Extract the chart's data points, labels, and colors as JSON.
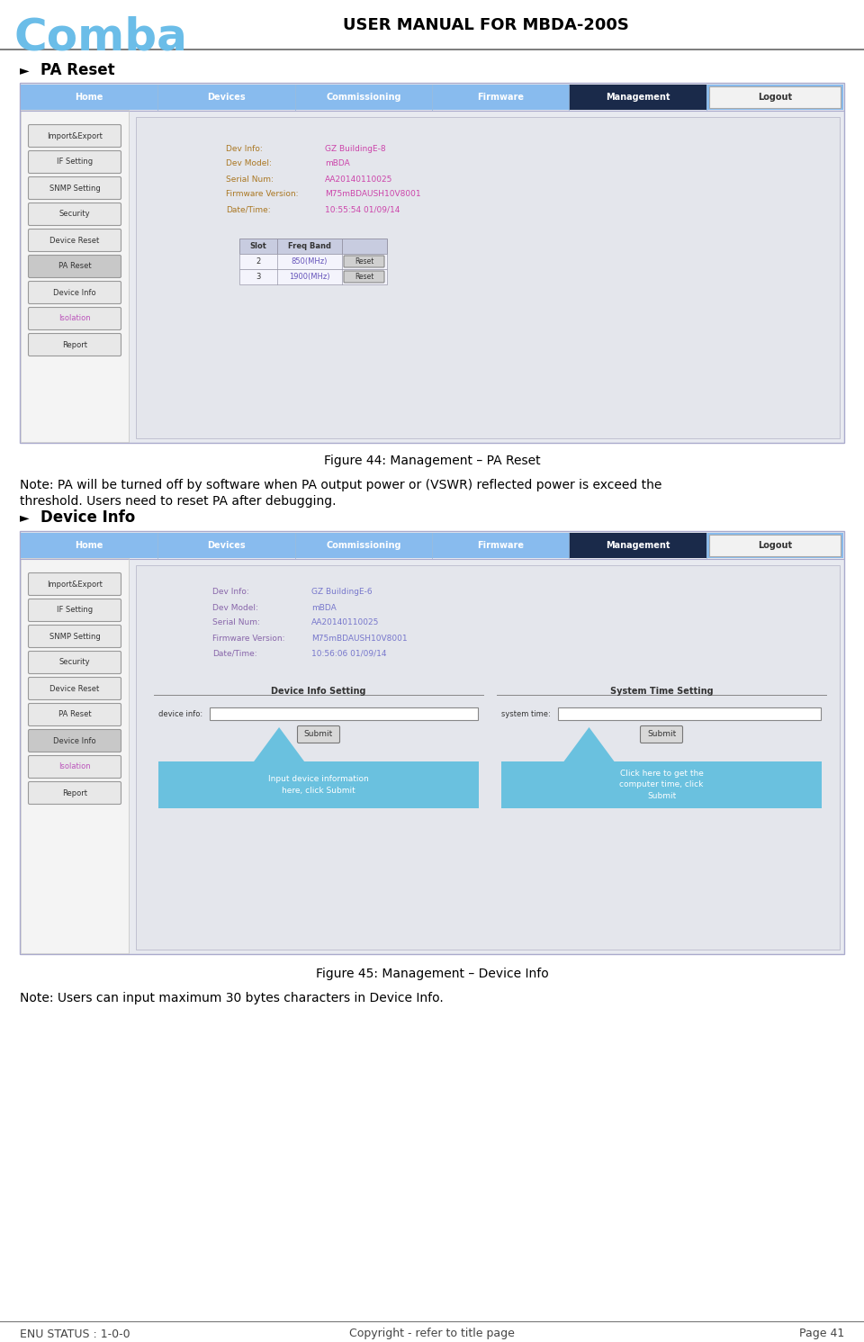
{
  "title": "USER MANUAL FOR MBDA-200S",
  "comba_text": "Comba",
  "comba_color": "#6bbde8",
  "bg_color": "#ffffff",
  "footer_left": "ENU STATUS : 1-0-0",
  "footer_center": "Copyright - refer to title page",
  "footer_right": "Page 41",
  "section1_bullet": "►",
  "section1_title": "PA Reset",
  "section1_fig_caption": "Figure 44: Management – PA Reset",
  "section1_note_line1": "Note: PA will be turned off by software when PA output power or (VSWR) reflected power is exceed the",
  "section1_note_line2": "threshold. Users need to reset PA after debugging.",
  "section2_bullet": "►",
  "section2_title": "Device Info",
  "section2_fig_caption": "Figure 45: Management – Device Info",
  "section2_note": "Note: Users can input maximum 30 bytes characters in Device Info.",
  "nav_items": [
    "Home",
    "Devices",
    "Commissioning",
    "Firmware",
    "Management",
    "Logout"
  ],
  "nav_active": "Management",
  "nav_bg": "#88bbee",
  "nav_active_bg": "#1a2a4a",
  "nav_text_color": "#ffffff",
  "sidebar_buttons": [
    "Import&Export",
    "IF Setting",
    "SNMP Setting",
    "Security",
    "Device Reset",
    "PA Reset",
    "Device Info",
    "Isolation",
    "Report"
  ],
  "sidebar_active1": "PA Reset",
  "sidebar_active2": "Device Info",
  "sidebar_isolation_color": "#bb55bb",
  "fig1_dev_info": "GZ BuildingE-8",
  "fig1_dev_model": "mBDA",
  "fig1_serial": "AA20140110025",
  "fig1_firmware": "M75mBDAUSH10V8001",
  "fig1_datetime": "10:55:54 01/09/14",
  "fig1_slot_data": [
    [
      2,
      "850(MHz)"
    ],
    [
      3,
      "1900(MHz)"
    ]
  ],
  "fig2_dev_info": "GZ BuildingE-6",
  "fig2_dev_model": "mBDA",
  "fig2_serial": "AA20140110025",
  "fig2_firmware": "M75mBDAUSH10V8001",
  "fig2_datetime": "10:56:06 01/09/14",
  "label_color": "#aa7722",
  "value_color": "#cc44aa",
  "label_color2": "#8866aa",
  "value_color2": "#7777cc",
  "table_header_bg": "#c8cce0",
  "table_row_bg": "#f4f4fc",
  "reset_btn_bg": "#d0d0d0",
  "outer_border_color": "#aaaacc",
  "frame_bg": "#e8eaf0",
  "inner_bg": "#f0f0f4",
  "main_panel_bg": "#e4e6ec",
  "sidebar_bg": "#f4f4f4",
  "callout_color": "#55bbdd"
}
